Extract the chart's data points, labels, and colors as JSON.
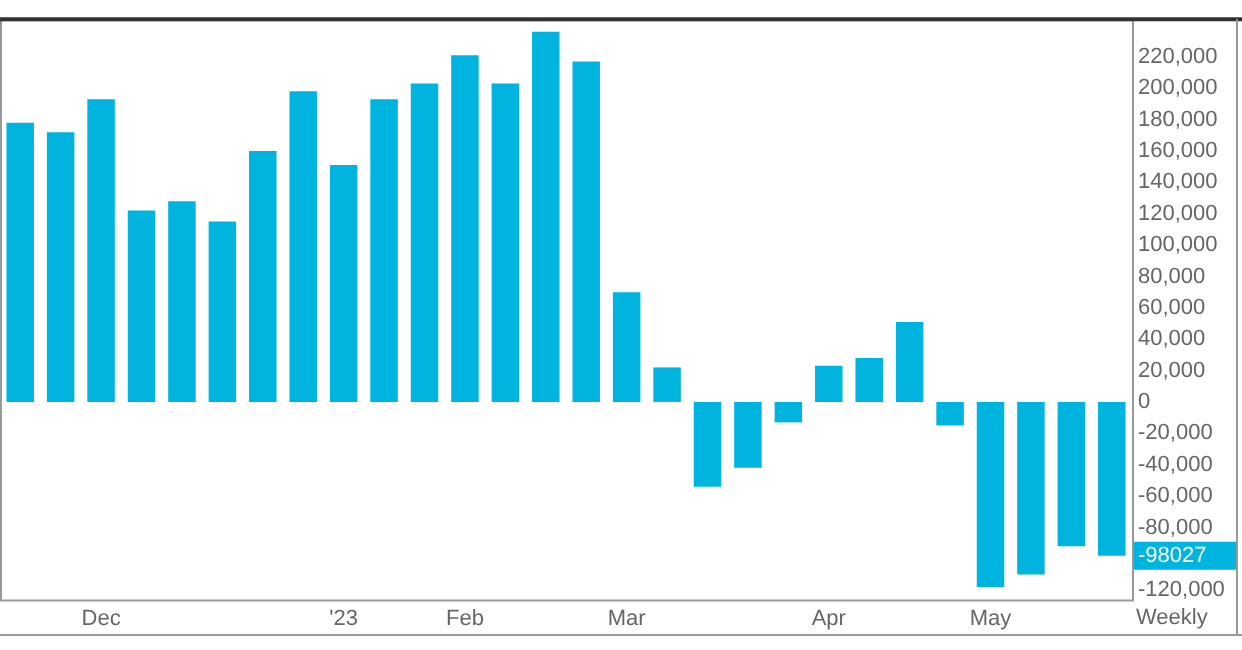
{
  "chart_data": {
    "type": "bar",
    "categories": [
      null,
      null,
      "Dec",
      null,
      null,
      null,
      null,
      null,
      "'23",
      null,
      null,
      "Feb",
      null,
      null,
      null,
      "Mar",
      null,
      null,
      null,
      null,
      "Apr",
      null,
      null,
      null,
      "May",
      null,
      null,
      null
    ],
    "values": [
      178000,
      172000,
      193000,
      122000,
      128000,
      115000,
      160000,
      198000,
      151000,
      193000,
      203000,
      221000,
      203000,
      236000,
      217000,
      70000,
      22000,
      -54000,
      -42000,
      -13000,
      23000,
      28000,
      51000,
      -15000,
      -118000,
      -110000,
      -92000,
      -98027
    ],
    "color": "#00b4e0",
    "ylim": [
      -126000,
      244000
    ],
    "yticks": [
      {
        "value": -120000,
        "label": "-120,000"
      },
      {
        "value": -80000,
        "label": "-80,000"
      },
      {
        "value": -60000,
        "label": "-60,000"
      },
      {
        "value": -40000,
        "label": "-40,000"
      },
      {
        "value": -20000,
        "label": "-20,000"
      },
      0,
      {
        "value": 20000,
        "label": "20,000"
      },
      {
        "value": 40000,
        "label": "40,000"
      },
      {
        "value": 60000,
        "label": "60,000"
      },
      {
        "value": 80000,
        "label": "80,000"
      },
      {
        "value": 100000,
        "label": "100,000"
      },
      {
        "value": 120000,
        "label": "120,000"
      },
      {
        "value": 140000,
        "label": "140,000"
      },
      {
        "value": 160000,
        "label": "160,000"
      },
      {
        "value": 180000,
        "label": "180,000"
      },
      {
        "value": 200000,
        "label": "200,000"
      },
      {
        "value": 220000,
        "label": "220,000"
      }
    ],
    "annotations": [
      "-98027",
      "Weekly"
    ],
    "grid": false,
    "legend": false
  }
}
